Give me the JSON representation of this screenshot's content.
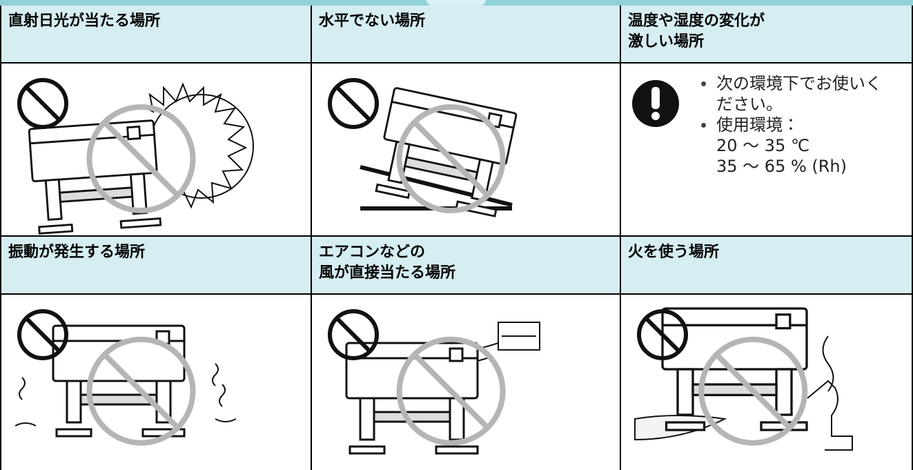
{
  "table": {
    "header_rows": [
      [
        [
          "直射日光が当たる場所"
        ],
        [
          "水平でない場所"
        ],
        [
          "温度や湿度の変化が",
          "激しい場所"
        ]
      ],
      [
        [
          "振動が発生する場所"
        ],
        [
          "エアコンなどの",
          "風が直接当たる場所"
        ],
        [
          "火を使う場所"
        ]
      ]
    ],
    "note": {
      "bullets": [
        [
          "次の環境下でお使いく",
          "ださい。"
        ],
        [
          "使用環境：",
          "20 ～ 35 ℃",
          "35 ～ 65 % (Rh)"
        ]
      ]
    }
  }
}
